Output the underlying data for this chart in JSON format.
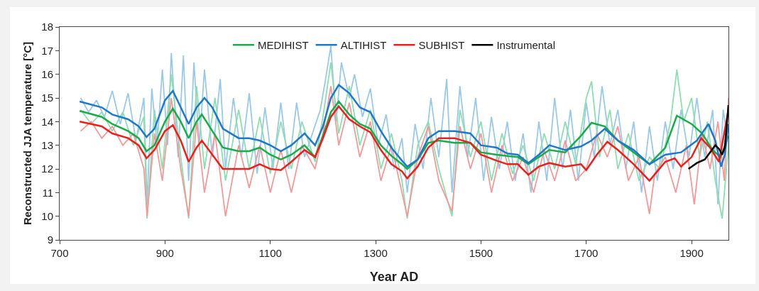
{
  "chart_data": {
    "type": "line",
    "xlabel": "Year AD",
    "ylabel": "Reconstructed JJA temperature [°C]",
    "xlim": [
      700,
      1970
    ],
    "xticks": [
      700,
      900,
      1100,
      1300,
      1500,
      1700,
      1900
    ],
    "ylim": [
      9,
      18
    ],
    "yticks": [
      9,
      10,
      11,
      12,
      13,
      14,
      15,
      16,
      17,
      18
    ],
    "grid": false,
    "legend": "top",
    "marker": "none",
    "line_style": "solid",
    "series": [
      {
        "color": "#9cc8e8",
        "x": [
          740,
          755,
          770,
          785,
          800,
          815,
          830,
          845,
          860,
          866,
          875,
          885,
          895,
          905,
          912,
          925,
          935,
          945,
          955,
          965,
          975,
          990,
          1005,
          1015,
          1030,
          1045,
          1060,
          1075,
          1090,
          1105,
          1120,
          1135,
          1150,
          1165,
          1180,
          1195,
          1205,
          1215,
          1225,
          1235,
          1250,
          1260,
          1275,
          1290,
          1305,
          1320,
          1335,
          1350,
          1360,
          1375,
          1390,
          1405,
          1420,
          1435,
          1445,
          1460,
          1475,
          1490,
          1505,
          1520,
          1535,
          1550,
          1565,
          1580,
          1595,
          1610,
          1625,
          1640,
          1655,
          1670,
          1685,
          1700,
          1715,
          1730,
          1745,
          1760,
          1775,
          1790,
          1805,
          1820,
          1835,
          1850,
          1865,
          1880,
          1895,
          1910,
          1925,
          1940,
          1950,
          1960,
          1970
        ],
        "values": [
          15.0,
          14.4,
          14.9,
          14.2,
          15.3,
          13.9,
          15.2,
          13.2,
          15.0,
          10.5,
          15.4,
          13.0,
          16.2,
          13.0,
          16.9,
          12.5,
          16.8,
          11.5,
          16.5,
          13.0,
          16.2,
          12.5,
          15.8,
          12.0,
          15.0,
          12.5,
          15.2,
          11.8,
          14.6,
          12.0,
          14.8,
          12.0,
          14.8,
          12.5,
          13.5,
          14.5,
          15.8,
          17.2,
          14.0,
          16.5,
          15.0,
          16.0,
          14.2,
          15.4,
          13.0,
          14.3,
          12.0,
          13.3,
          11.0,
          13.9,
          12.0,
          15.0,
          12.5,
          15.8,
          11.0,
          15.5,
          12.5,
          15.0,
          11.5,
          14.2,
          12.0,
          14.0,
          11.5,
          13.5,
          11.0,
          14.0,
          11.5,
          15.0,
          12.0,
          14.5,
          11.5,
          14.8,
          12.5,
          15.5,
          13.0,
          14.5,
          12.0,
          14.0,
          11.0,
          13.8,
          11.5,
          14.0,
          12.0,
          14.5,
          12.5,
          15.0,
          12.5,
          14.5,
          10.5,
          14.5,
          13.0
        ]
      },
      {
        "color": "#8fdcb0",
        "x": [
          740,
          760,
          780,
          800,
          820,
          840,
          860,
          866,
          880,
          895,
          912,
          930,
          945,
          960,
          975,
          995,
          1015,
          1040,
          1060,
          1080,
          1100,
          1120,
          1140,
          1160,
          1185,
          1200,
          1215,
          1230,
          1250,
          1270,
          1290,
          1310,
          1330,
          1350,
          1360,
          1380,
          1400,
          1420,
          1445,
          1460,
          1480,
          1500,
          1520,
          1540,
          1560,
          1580,
          1600,
          1620,
          1640,
          1660,
          1680,
          1700,
          1710,
          1725,
          1745,
          1760,
          1780,
          1800,
          1820,
          1840,
          1860,
          1872,
          1885,
          1900,
          1915,
          1930,
          1945,
          1958,
          1970
        ],
        "values": [
          14.5,
          13.9,
          14.4,
          13.6,
          14.4,
          13.0,
          14.2,
          9.9,
          14.5,
          12.0,
          16.0,
          12.5,
          9.9,
          15.5,
          12.0,
          15.0,
          11.5,
          14.5,
          12.0,
          14.2,
          11.8,
          14.0,
          12.0,
          14.0,
          12.3,
          14.2,
          16.5,
          13.5,
          15.5,
          13.0,
          14.5,
          12.0,
          13.5,
          11.5,
          9.9,
          13.0,
          14.0,
          12.0,
          10.0,
          14.5,
          12.5,
          14.0,
          11.5,
          13.5,
          11.8,
          13.0,
          11.5,
          13.5,
          12.0,
          14.0,
          12.2,
          15.0,
          15.7,
          12.5,
          14.5,
          12.0,
          13.5,
          11.5,
          12.5,
          12.0,
          14.0,
          16.2,
          14.0,
          15.0,
          12.5,
          14.0,
          11.5,
          9.9,
          13.0
        ]
      },
      {
        "color": "#f29a9a",
        "x": [
          740,
          760,
          780,
          800,
          820,
          840,
          860,
          866,
          880,
          895,
          912,
          930,
          945,
          960,
          975,
          995,
          1015,
          1040,
          1060,
          1080,
          1100,
          1120,
          1140,
          1160,
          1185,
          1200,
          1215,
          1230,
          1250,
          1270,
          1290,
          1310,
          1330,
          1350,
          1360,
          1380,
          1400,
          1420,
          1445,
          1460,
          1480,
          1500,
          1520,
          1540,
          1560,
          1580,
          1600,
          1620,
          1640,
          1660,
          1680,
          1700,
          1720,
          1740,
          1760,
          1780,
          1800,
          1820,
          1830,
          1850,
          1870,
          1890,
          1905,
          1920,
          1935,
          1950,
          1962,
          1970
        ],
        "values": [
          13.6,
          14.0,
          13.3,
          13.8,
          13.0,
          13.5,
          12.0,
          10.0,
          13.5,
          11.5,
          15.0,
          12.0,
          10.0,
          14.0,
          11.0,
          13.5,
          10.0,
          13.0,
          11.2,
          13.0,
          11.0,
          12.8,
          11.0,
          13.0,
          12.0,
          13.5,
          15.5,
          13.0,
          14.8,
          12.5,
          14.0,
          11.5,
          13.0,
          11.0,
          10.0,
          12.5,
          13.8,
          11.5,
          10.2,
          13.8,
          12.0,
          13.5,
          11.0,
          13.0,
          11.5,
          12.5,
          11.0,
          12.8,
          11.5,
          13.2,
          11.5,
          12.0,
          13.5,
          12.5,
          13.8,
          11.5,
          12.5,
          10.1,
          11.8,
          12.5,
          11.0,
          13.0,
          10.5,
          13.5,
          12.0,
          14.0,
          11.5,
          15.0
        ]
      },
      {
        "name": "MEDIHIST",
        "color": "#1aab4a",
        "x": [
          738,
          780,
          800,
          830,
          850,
          865,
          880,
          900,
          915,
          930,
          945,
          960,
          970,
          990,
          1010,
          1040,
          1060,
          1080,
          1100,
          1120,
          1140,
          1165,
          1185,
          1200,
          1215,
          1230,
          1250,
          1270,
          1290,
          1310,
          1330,
          1350,
          1360,
          1380,
          1400,
          1420,
          1450,
          1480,
          1500,
          1530,
          1550,
          1570,
          1590,
          1610,
          1630,
          1660,
          1690,
          1710,
          1735,
          1760,
          1790,
          1820,
          1850,
          1872,
          1900,
          1920,
          1940,
          1955,
          1970
        ],
        "values": [
          14.45,
          14.2,
          13.9,
          13.6,
          13.3,
          12.75,
          13.0,
          14.0,
          14.55,
          14.0,
          13.3,
          14.0,
          14.3,
          13.6,
          12.9,
          12.75,
          12.75,
          12.9,
          12.6,
          12.4,
          12.6,
          13.0,
          12.5,
          13.4,
          14.4,
          14.85,
          14.3,
          13.9,
          13.7,
          13.0,
          12.55,
          12.2,
          12.0,
          12.4,
          13.1,
          13.2,
          13.1,
          13.1,
          12.7,
          12.6,
          12.55,
          12.5,
          12.2,
          12.5,
          12.8,
          12.7,
          13.4,
          13.95,
          13.8,
          13.2,
          12.7,
          12.2,
          12.9,
          14.25,
          13.9,
          13.5,
          12.8,
          12.5,
          13.4
        ]
      },
      {
        "name": "ALTIHIST",
        "color": "#1f78c8",
        "x": [
          738,
          780,
          800,
          830,
          850,
          865,
          880,
          900,
          915,
          930,
          945,
          960,
          975,
          990,
          1010,
          1040,
          1060,
          1080,
          1100,
          1120,
          1140,
          1165,
          1185,
          1200,
          1215,
          1230,
          1250,
          1270,
          1290,
          1310,
          1330,
          1350,
          1360,
          1380,
          1400,
          1420,
          1450,
          1480,
          1500,
          1530,
          1550,
          1570,
          1590,
          1610,
          1630,
          1660,
          1690,
          1710,
          1735,
          1760,
          1790,
          1820,
          1850,
          1880,
          1910,
          1932,
          1945,
          1956,
          1963,
          1970
        ],
        "values": [
          14.85,
          14.6,
          14.3,
          14.1,
          13.8,
          13.35,
          13.7,
          14.9,
          15.3,
          14.6,
          13.9,
          14.6,
          15.0,
          14.6,
          13.7,
          13.3,
          13.3,
          13.2,
          13.0,
          12.75,
          13.0,
          13.5,
          13.0,
          13.8,
          15.0,
          15.55,
          15.2,
          14.6,
          14.4,
          13.6,
          12.9,
          12.35,
          12.1,
          12.4,
          13.3,
          13.6,
          13.6,
          13.5,
          13.0,
          12.9,
          12.65,
          12.6,
          12.25,
          12.6,
          13.0,
          12.8,
          12.95,
          13.2,
          13.7,
          13.2,
          12.8,
          12.2,
          12.6,
          12.7,
          13.2,
          13.9,
          13.2,
          12.1,
          12.6,
          13.9
        ]
      },
      {
        "name": "SUBHIST",
        "color": "#e8201e",
        "x": [
          738,
          780,
          800,
          830,
          850,
          865,
          880,
          900,
          915,
          930,
          945,
          960,
          970,
          990,
          1010,
          1040,
          1060,
          1080,
          1100,
          1120,
          1140,
          1165,
          1185,
          1200,
          1215,
          1230,
          1250,
          1270,
          1290,
          1310,
          1330,
          1350,
          1360,
          1380,
          1400,
          1420,
          1450,
          1480,
          1500,
          1530,
          1550,
          1570,
          1590,
          1610,
          1630,
          1660,
          1690,
          1700,
          1720,
          1740,
          1760,
          1790,
          1820,
          1850,
          1868,
          1880,
          1900,
          1918,
          1935,
          1952,
          1970
        ],
        "values": [
          14.0,
          13.8,
          13.5,
          13.3,
          13.0,
          12.45,
          12.8,
          13.6,
          13.85,
          13.2,
          12.3,
          12.9,
          13.2,
          12.6,
          12.0,
          12.0,
          12.0,
          12.2,
          12.0,
          11.95,
          12.3,
          12.8,
          12.5,
          13.3,
          14.2,
          14.65,
          14.1,
          13.8,
          13.55,
          12.8,
          12.2,
          11.9,
          11.6,
          12.1,
          12.9,
          13.3,
          13.3,
          13.1,
          12.6,
          12.35,
          12.2,
          12.2,
          11.75,
          12.1,
          12.25,
          12.1,
          12.2,
          11.95,
          12.6,
          13.15,
          12.8,
          12.2,
          11.5,
          12.3,
          12.45,
          12.1,
          12.5,
          13.3,
          12.9,
          12.3,
          14.5
        ]
      },
      {
        "name": "Instrumental",
        "color": "#000000",
        "x": [
          1894,
          1910,
          1925,
          1935,
          1945,
          1952,
          1958,
          1963,
          1970
        ],
        "values": [
          12.0,
          12.25,
          12.4,
          12.7,
          13.0,
          12.85,
          12.6,
          12.9,
          14.7
        ]
      }
    ]
  }
}
